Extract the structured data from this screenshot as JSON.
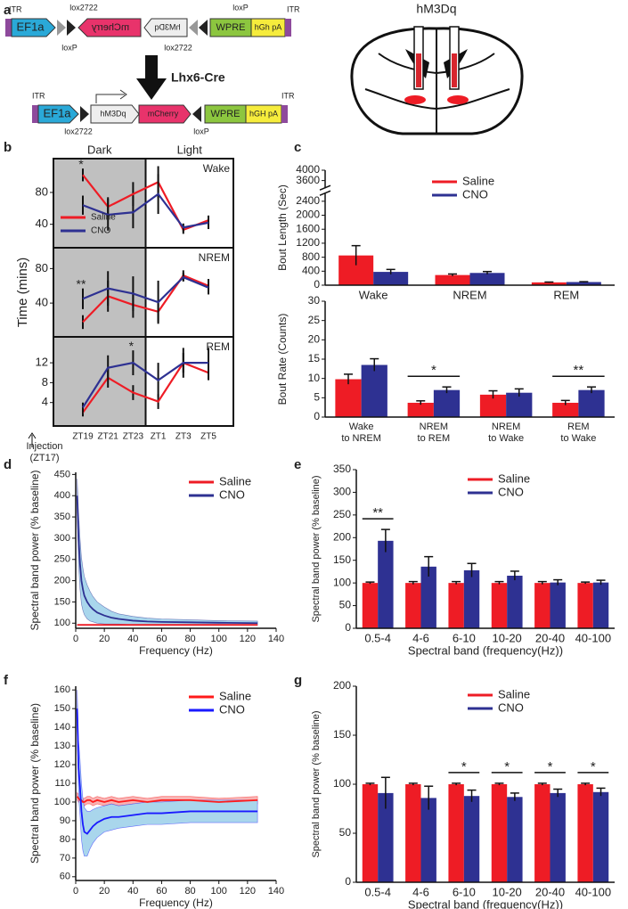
{
  "panel_labels": [
    "a",
    "b",
    "c",
    "d",
    "e",
    "f",
    "g"
  ],
  "diagram": {
    "before": [
      "ITR",
      "EF1a",
      "lox2722",
      "loxP",
      "mCherry",
      "hM3Dq",
      "lox2722",
      "loxP",
      "WPRE",
      "hGh pA",
      "ITR"
    ],
    "arrow": "Lhx6-Cre",
    "after": [
      "ITR",
      "EF1a",
      "lox2722",
      "hM3Dq",
      "mCherry",
      "loxP",
      "WPRE",
      "hGH pA",
      "ITR"
    ],
    "brain_title": "hM3Dq"
  },
  "chart_data": [
    {
      "type": "line",
      "ylabel": "Time (mins)",
      "annotation": "Injection\n(ZT17)",
      "legend": "lower left",
      "categories": [
        "ZT19",
        "ZT21",
        "ZT23",
        "ZT1",
        "ZT3",
        "ZT5"
      ],
      "x_regions": [
        {
          "label": "Dark",
          "from": "ZT19",
          "to": "ZT23",
          "color": "#c0c0c0"
        },
        {
          "label": "Light",
          "from": "ZT1",
          "to": "ZT5"
        }
      ],
      "series": [
        {
          "name": "Saline",
          "color": "#ee1c25"
        },
        {
          "name": "CNO",
          "color": "#2e3192"
        }
      ],
      "subplots": [
        {
          "label": "Wake",
          "ylim": [
            15,
            118
          ],
          "yticks": [
            40,
            80
          ],
          "values": [
            [
              102,
              62,
              78,
              93,
              33,
              45
            ],
            [
              64,
              52,
              55,
              78,
              36,
              42
            ]
          ],
          "errors": [
            [
              8,
              12,
              15,
              20,
              5,
              6
            ],
            [
              12,
              20,
              20,
              25,
              5,
              8
            ]
          ],
          "annotations": [
            {
              "text": "*",
              "category": "ZT19"
            }
          ]
        },
        {
          "label": "NREM",
          "ylim": [
            5,
            100
          ],
          "yticks": [
            40,
            80
          ],
          "values": [
            [
              18,
              48,
              38,
              30,
              72,
              60
            ],
            [
              45,
              57,
              51,
              41,
              70,
              58
            ]
          ],
          "errors": [
            [
              8,
              18,
              15,
              12,
              6,
              8
            ],
            [
              12,
              20,
              20,
              25,
              5,
              8
            ]
          ],
          "annotations": [
            {
              "text": "**",
              "category": "ZT19"
            }
          ]
        },
        {
          "label": "REM",
          "ylim": [
            0,
            16.5
          ],
          "yticks": [
            4,
            8,
            12
          ],
          "values": [
            [
              2,
              9,
              6,
              4.2,
              12,
              10
            ],
            [
              3,
              11,
              12,
              8.5,
              12,
              12
            ]
          ],
          "errors": [
            [
              0.8,
              2,
              1.5,
              1.5,
              2,
              1.5
            ],
            [
              1,
              2.5,
              2.5,
              3.5,
              3,
              3
            ]
          ],
          "annotations": [
            {
              "text": "*",
              "category": "ZT23"
            }
          ]
        }
      ]
    },
    {
      "type": "bar",
      "ylabel": "Bout Length (Sec)",
      "legend": "upper right",
      "axis_break": true,
      "categories": [
        "Wake",
        "NREM",
        "REM"
      ],
      "ylim": [
        0,
        4000
      ],
      "yticks": [
        0,
        400,
        800,
        1200,
        1600,
        2000,
        2400,
        3600,
        4000
      ],
      "series": [
        {
          "name": "Saline",
          "color": "#ee1c25",
          "values": [
            850,
            290,
            80
          ],
          "errors": [
            280,
            30,
            10
          ]
        },
        {
          "name": "CNO",
          "color": "#2e3192",
          "values": [
            380,
            350,
            90
          ],
          "errors": [
            70,
            40,
            10
          ]
        }
      ]
    },
    {
      "type": "bar",
      "ylabel": "Bout Rate (Counts)",
      "categories": [
        "Wake\nto NREM",
        "NREM\nto REM",
        "NREM\nto Wake",
        "REM\nto Wake"
      ],
      "ylim": [
        0,
        30
      ],
      "yticks": [
        0,
        5,
        10,
        15,
        20,
        25,
        30
      ],
      "series": [
        {
          "color": "#ee1c25",
          "values": [
            9.8,
            3.7,
            5.8,
            3.7
          ],
          "errors": [
            1.3,
            0.5,
            1,
            0.6
          ]
        },
        {
          "color": "#2e3192",
          "values": [
            13.5,
            7,
            6.3,
            7
          ],
          "errors": [
            1.6,
            0.8,
            1,
            0.8
          ]
        }
      ],
      "annotations": [
        {
          "text": "*",
          "category": "NREM\nto REM"
        },
        {
          "text": "**",
          "category": "REM\nto Wake"
        }
      ]
    },
    {
      "type": "line",
      "xlabel": "Frequency (Hz)",
      "ylabel": "Spectral band power (% baseline)",
      "legend": "upper right",
      "x": [
        1,
        2,
        3,
        4,
        5,
        6,
        8,
        10,
        12,
        15,
        20,
        25,
        30,
        40,
        50,
        60,
        80,
        100,
        127
      ],
      "xlim": [
        0,
        140
      ],
      "xticks": [
        0,
        20,
        40,
        60,
        80,
        100,
        120,
        140
      ],
      "ylim": [
        88,
        455
      ],
      "yticks": [
        100,
        150,
        200,
        250,
        300,
        350,
        400,
        450
      ],
      "series": [
        {
          "name": "Saline",
          "color": "#ee1c25",
          "values": [
            96,
            96,
            96,
            96,
            96,
            96,
            96,
            96,
            96,
            96,
            96,
            96,
            96,
            96,
            96,
            96,
            96,
            96,
            96
          ]
        },
        {
          "name": "CNO",
          "color": "#2e3192",
          "band_color": "#a9d6ec",
          "values": [
            400,
            300,
            240,
            200,
            180,
            165,
            150,
            140,
            133,
            125,
            118,
            113,
            110,
            106,
            104,
            103,
            102,
            101,
            100
          ],
          "errors": [
            40,
            60,
            60,
            55,
            50,
            45,
            40,
            35,
            30,
            25,
            20,
            15,
            12,
            10,
            8,
            7,
            6,
            5,
            5
          ]
        }
      ]
    },
    {
      "type": "bar",
      "xlabel": "Spectral band (frequency(Hz))",
      "ylabel": "Spectral band power (% baseline)",
      "legend": "upper right",
      "categories": [
        "0.5-4",
        "4-6",
        "6-10",
        "10-20",
        "20-40",
        "40-100"
      ],
      "ylim": [
        0,
        350
      ],
      "yticks": [
        0,
        50,
        100,
        150,
        200,
        250,
        300,
        350
      ],
      "series": [
        {
          "name": "Saline",
          "color": "#ee1c25",
          "values": [
            100,
            100,
            100,
            100,
            100,
            100
          ],
          "errors": [
            2,
            3,
            3,
            3,
            3,
            2
          ]
        },
        {
          "name": "CNO",
          "color": "#2e3192",
          "values": [
            193,
            136,
            128,
            116,
            101,
            101
          ],
          "errors": [
            25,
            22,
            15,
            10,
            6,
            5
          ]
        }
      ],
      "annotations": [
        {
          "text": "**",
          "category": "0.5-4"
        }
      ]
    },
    {
      "type": "line",
      "xlabel": "Frequency (Hz)",
      "ylabel": "Spectral band power (% baseline)",
      "legend": "upper right",
      "x": [
        1,
        2,
        3,
        4,
        5,
        6,
        8,
        10,
        12,
        15,
        20,
        25,
        30,
        40,
        50,
        60,
        80,
        100,
        127
      ],
      "xlim": [
        0,
        140
      ],
      "xticks": [
        0,
        20,
        40,
        60,
        80,
        100,
        120,
        140
      ],
      "ylim": [
        58,
        162
      ],
      "yticks": [
        60,
        70,
        80,
        90,
        100,
        110,
        120,
        130,
        140,
        150,
        160
      ],
      "series": [
        {
          "name": "Saline",
          "color": "#ff1a1a",
          "band_color": "#f7b3b3",
          "values": [
            103,
            102,
            101,
            101,
            100,
            100,
            101,
            101,
            100,
            101,
            100,
            101,
            100,
            101,
            100,
            101,
            101,
            100,
            101
          ],
          "errors": [
            2,
            2,
            2,
            2,
            2,
            2,
            2,
            2,
            2,
            2,
            2,
            2,
            2,
            2,
            2,
            2,
            2,
            2,
            2
          ]
        },
        {
          "name": "CNO",
          "color": "#1a1aff",
          "band_color": "#a9d6ec",
          "values": [
            150,
            118,
            108,
            95,
            88,
            84,
            83,
            85,
            87,
            89,
            91,
            92,
            92,
            93,
            94,
            94,
            95,
            95,
            95
          ],
          "errors": [
            10,
            15,
            15,
            15,
            14,
            13,
            12,
            10,
            9,
            8,
            7,
            7,
            6,
            6,
            6,
            6,
            6,
            6,
            6
          ]
        }
      ]
    },
    {
      "type": "bar",
      "xlabel": "Spectral band (frequency(Hz))",
      "ylabel": "Spectral band power (% baseline)",
      "legend": "upper right",
      "categories": [
        "0.5-4",
        "4-6",
        "6-10",
        "10-20",
        "20-40",
        "40-100"
      ],
      "ylim": [
        0,
        200
      ],
      "yticks": [
        0,
        50,
        100,
        150,
        200
      ],
      "series": [
        {
          "name": "Saline",
          "color": "#ee1c25",
          "values": [
            100,
            100,
            100,
            100,
            100,
            100
          ],
          "errors": [
            1,
            1,
            1,
            1,
            1,
            1
          ]
        },
        {
          "name": "CNO",
          "color": "#2e3192",
          "values": [
            91,
            86,
            88,
            87,
            91,
            92
          ],
          "errors": [
            16,
            12,
            6,
            4,
            4,
            4
          ]
        }
      ],
      "annotations": [
        {
          "text": "*",
          "category": "6-10"
        },
        {
          "text": "*",
          "category": "10-20"
        },
        {
          "text": "*",
          "category": "20-40"
        },
        {
          "text": "*",
          "category": "40-100"
        }
      ]
    }
  ]
}
